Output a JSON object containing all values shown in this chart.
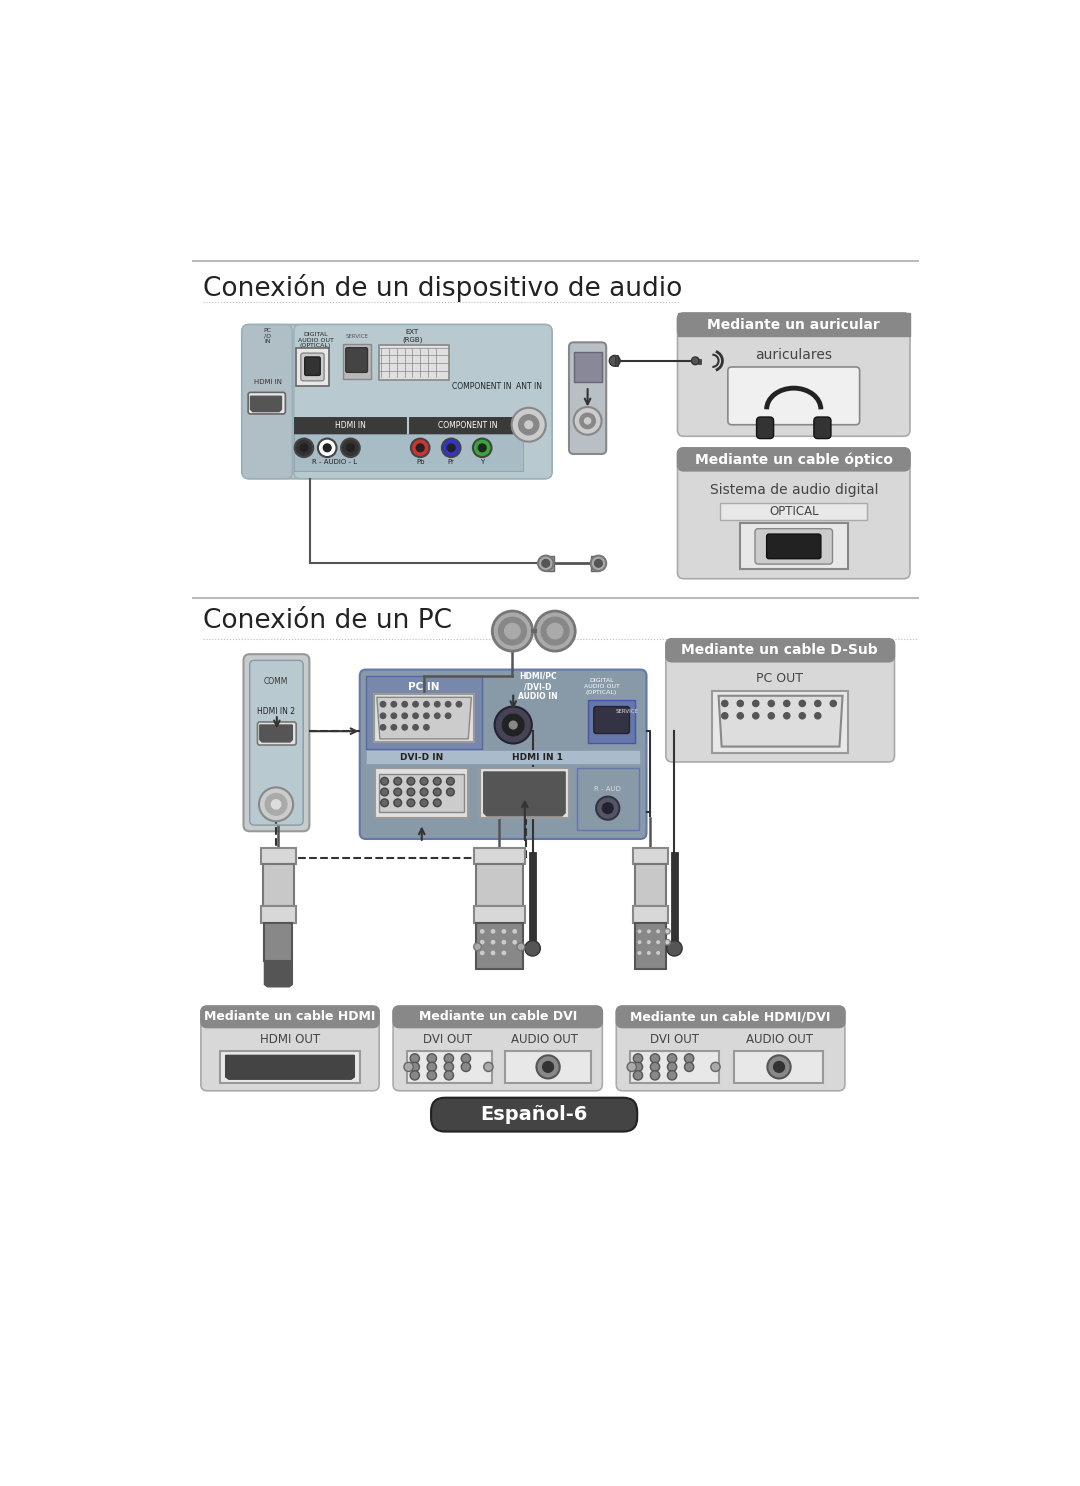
{
  "bg_color": "#ffffff",
  "section1_title": "Conexión de un dispositivo de audio",
  "section2_title": "Conexión de un PC",
  "box1_title": "Mediante un auricular",
  "box1_sub": "auriculares",
  "box2_title": "Mediante un cable óptico",
  "box2_sub": "Sistema de audio digital",
  "box2_sub2": "OPTICAL",
  "box3_title": "Mediante un cable D-Sub",
  "box3_sub": "PC OUT",
  "box4_title": "Mediante un cable HDMI",
  "box4_sub": "HDMI OUT",
  "box5_title": "Mediante un cable DVI",
  "box5_sub1": "DVI OUT",
  "box5_sub2": "AUDIO OUT",
  "box6_title": "Mediante un cable HDMI/DVI",
  "box6_sub1": "DVI OUT",
  "box6_sub2": "AUDIO OUT",
  "footer_text": "Español-6",
  "hline_color": "#bbbbbb",
  "dotted_color": "#bbbbbb",
  "box_hdr_color": "#888888",
  "box_bg_color": "#d8d8d8",
  "box_border_color": "#aaaaaa",
  "title_color": "#222222",
  "text_color": "#444444",
  "panel_body_color": "#b8cad0",
  "panel_dark_color": "#8899a0",
  "panel_outer_color": "#c0c8cc",
  "dashed_color": "#333333"
}
